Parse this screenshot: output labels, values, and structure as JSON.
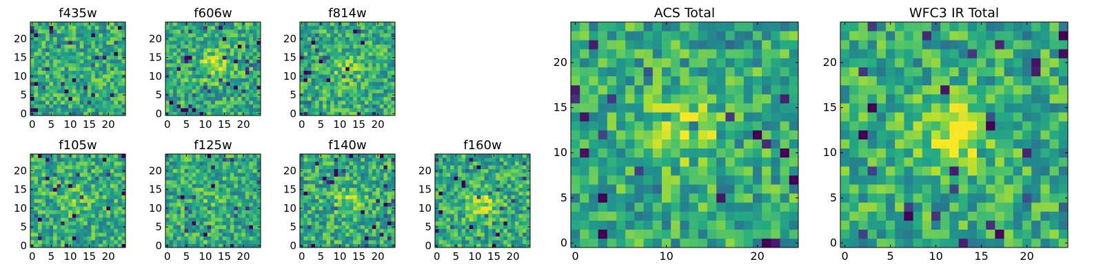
{
  "figure": {
    "panels": [
      {
        "id": "f435w",
        "title": "f435w",
        "kind": "small",
        "xticks": [
          0,
          5,
          10,
          15,
          20
        ],
        "yticks": [
          0,
          5,
          10,
          15,
          20
        ],
        "seed": 11,
        "blob": [
          12,
          12
        ],
        "blob_strength": 0.0
      },
      {
        "id": "f606w",
        "title": "f606w",
        "kind": "small",
        "xticks": [
          0,
          5,
          10,
          15,
          20
        ],
        "yticks": [
          0,
          5,
          10,
          15,
          20
        ],
        "seed": 23,
        "blob": [
          12,
          13
        ],
        "blob_strength": 0.55
      },
      {
        "id": "f814w",
        "title": "f814w",
        "kind": "small",
        "xticks": [
          0,
          5,
          10,
          15,
          20
        ],
        "yticks": [
          0,
          5,
          10,
          15,
          20
        ],
        "seed": 37,
        "blob": [
          12,
          12
        ],
        "blob_strength": 0.35
      },
      {
        "id": "f105w",
        "title": "f105w",
        "kind": "small",
        "xticks": [
          0,
          5,
          10,
          15,
          20
        ],
        "yticks": [
          0,
          5,
          10,
          15,
          20
        ],
        "seed": 41,
        "blob": [
          12,
          12
        ],
        "blob_strength": 0.25
      },
      {
        "id": "f125w",
        "title": "f125w",
        "kind": "small",
        "xticks": [
          0,
          5,
          10,
          15,
          20
        ],
        "yticks": [
          0,
          5,
          10,
          15,
          20
        ],
        "seed": 53,
        "blob": [
          12,
          12
        ],
        "blob_strength": 0.15
      },
      {
        "id": "f140w",
        "title": "f140w",
        "kind": "small",
        "xticks": [
          0,
          5,
          10,
          15,
          20
        ],
        "yticks": [
          0,
          5,
          10,
          15,
          20
        ],
        "seed": 67,
        "blob": [
          12,
          12
        ],
        "blob_strength": 0.35
      },
      {
        "id": "f160w",
        "title": "f160w",
        "kind": "small",
        "xticks": [
          0,
          5,
          10,
          15,
          20
        ],
        "yticks": [
          0,
          5,
          10,
          15,
          20
        ],
        "seed": 71,
        "blob": [
          12,
          11
        ],
        "blob_strength": 0.55
      },
      {
        "id": "acs_total",
        "title": "ACS Total",
        "kind": "large",
        "xticks": [
          0,
          10,
          20
        ],
        "yticks": [
          0,
          5,
          10,
          15,
          20
        ],
        "seed": 83,
        "blob": [
          12,
          13
        ],
        "blob_strength": 0.55
      },
      {
        "id": "wfc3_total",
        "title": "WFC3 IR Total",
        "kind": "large",
        "xticks": [
          0,
          5,
          10,
          15,
          20
        ],
        "yticks": [
          0,
          5,
          10,
          15,
          20
        ],
        "seed": 97,
        "blob": [
          12,
          12
        ],
        "blob_strength": 0.75
      }
    ]
  },
  "chart_data": {
    "type": "heatmap",
    "colormap": "viridis",
    "grid": false,
    "x_range": [
      0,
      24
    ],
    "y_range": [
      0,
      24
    ],
    "image_size": [
      25,
      25
    ],
    "panel_titles": [
      "f435w",
      "f606w",
      "f814w",
      "f105w",
      "f125w",
      "f140w",
      "f160w",
      "ACS Total",
      "WFC3 IR Total"
    ],
    "note_values": "pixel intensities are not labeled; noise fields with a central bright source near (12,12)"
  }
}
